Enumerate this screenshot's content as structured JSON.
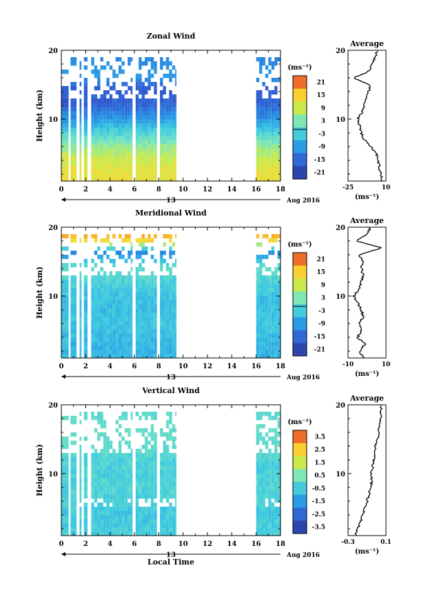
{
  "chart_data": [
    {
      "type": "heatmap",
      "title": "Zonal Wind",
      "ylabel": "Height (km)",
      "xlabel": "",
      "x_ticks": [
        "0",
        "2",
        "4",
        "6",
        "8",
        "10",
        "12",
        "14",
        "16",
        "18"
      ],
      "xlim": [
        0,
        18
      ],
      "y_ticks": [
        "20",
        "10"
      ],
      "ylim": [
        1,
        20
      ],
      "date_label": "13",
      "month_label": "Aug 2016",
      "colorbar_unit": "(ms⁻¹)",
      "colorbar_ticks": [
        "21",
        "15",
        "9",
        "3",
        "-3",
        "-9",
        "-15",
        "-21"
      ],
      "clim": [
        -24,
        24
      ],
      "data_blocks_hours": [
        [
          0,
          0.6
        ],
        [
          0.75,
          1.25
        ],
        [
          1.5,
          1.65
        ],
        [
          1.85,
          2.15
        ],
        [
          2.45,
          5.85
        ],
        [
          6.1,
          7.85
        ],
        [
          8.1,
          9.45
        ],
        [
          16,
          18
        ]
      ],
      "profile_rows": [
        {
          "h": 2,
          "v": 12
        },
        {
          "h": 4,
          "v": 9
        },
        {
          "h": 6,
          "v": 4
        },
        {
          "h": 8,
          "v": -3
        },
        {
          "h": 10,
          "v": -10
        },
        {
          "h": 12,
          "v": -16
        },
        {
          "h": 14,
          "v": -18
        },
        {
          "h": 16,
          "v": -10
        },
        {
          "h": 18,
          "v": -12
        }
      ],
      "average": {
        "title": "Average",
        "xlabel": "(ms⁻¹)",
        "x_ticks": [
          "-25",
          "10"
        ],
        "xlim": [
          -25,
          10
        ],
        "y_ticks": [
          "20",
          "10"
        ],
        "ylim": [
          1,
          20
        ],
        "profile": [
          {
            "h": 1,
            "v": 7
          },
          {
            "h": 2,
            "v": 5
          },
          {
            "h": 3,
            "v": 4
          },
          {
            "h": 4,
            "v": 3
          },
          {
            "h": 5,
            "v": 1
          },
          {
            "h": 6,
            "v": -4
          },
          {
            "h": 7,
            "v": -10
          },
          {
            "h": 8,
            "v": -13
          },
          {
            "h": 9,
            "v": -14
          },
          {
            "h": 10,
            "v": -16
          },
          {
            "h": 11,
            "v": -12
          },
          {
            "h": 12,
            "v": -10
          },
          {
            "h": 13,
            "v": -8
          },
          {
            "h": 14,
            "v": -6
          },
          {
            "h": 15,
            "v": -5
          },
          {
            "h": 16,
            "v": -20
          },
          {
            "h": 17,
            "v": -5
          },
          {
            "h": 18,
            "v": -3
          },
          {
            "h": 19,
            "v": 0
          },
          {
            "h": 20,
            "v": 2
          }
        ]
      }
    },
    {
      "type": "heatmap",
      "title": "Meridional Wind",
      "ylabel": "Height (km)",
      "xlabel": "",
      "x_ticks": [
        "0",
        "2",
        "4",
        "6",
        "8",
        "10",
        "12",
        "14",
        "16",
        "18"
      ],
      "xlim": [
        0,
        18
      ],
      "y_ticks": [
        "20",
        "10"
      ],
      "ylim": [
        1,
        20
      ],
      "date_label": "13",
      "month_label": "Aug 2016",
      "colorbar_unit": "(ms⁻¹)",
      "colorbar_ticks": [
        "21",
        "15",
        "9",
        "3",
        "-3",
        "-9",
        "-15",
        "-21"
      ],
      "clim": [
        -24,
        24
      ],
      "data_blocks_hours": [
        [
          0,
          0.6
        ],
        [
          0.75,
          1.25
        ],
        [
          1.5,
          1.65
        ],
        [
          1.85,
          2.15
        ],
        [
          2.45,
          5.85
        ],
        [
          6.1,
          7.85
        ],
        [
          8.1,
          9.45
        ],
        [
          16,
          18
        ]
      ],
      "profile_rows": [
        {
          "h": 2,
          "v": -6
        },
        {
          "h": 4,
          "v": -5
        },
        {
          "h": 6,
          "v": -4
        },
        {
          "h": 8,
          "v": -5
        },
        {
          "h": 10,
          "v": -4
        },
        {
          "h": 12,
          "v": -2
        },
        {
          "h": 14,
          "v": -1
        },
        {
          "h": 16,
          "v": -12
        },
        {
          "h": 18,
          "v": 16
        }
      ],
      "average": {
        "title": "Average",
        "xlabel": "(ms⁻¹)",
        "x_ticks": [
          "-10",
          "10"
        ],
        "xlim": [
          -10,
          10
        ],
        "y_ticks": [
          "20",
          "10"
        ],
        "ylim": [
          1,
          20
        ],
        "profile": [
          {
            "h": 1,
            "v": -2
          },
          {
            "h": 2,
            "v": -4
          },
          {
            "h": 3,
            "v": -1
          },
          {
            "h": 4,
            "v": -5
          },
          {
            "h": 5,
            "v": -3
          },
          {
            "h": 6,
            "v": -4
          },
          {
            "h": 7,
            "v": -2
          },
          {
            "h": 8,
            "v": -3
          },
          {
            "h": 9,
            "v": -5
          },
          {
            "h": 10,
            "v": -7
          },
          {
            "h": 11,
            "v": -4
          },
          {
            "h": 12,
            "v": -3
          },
          {
            "h": 13,
            "v": -2
          },
          {
            "h": 14,
            "v": -3
          },
          {
            "h": 15,
            "v": -2
          },
          {
            "h": 16,
            "v": -4
          },
          {
            "h": 17,
            "v": 8
          },
          {
            "h": 18,
            "v": -6
          },
          {
            "h": 19,
            "v": 0
          },
          {
            "h": 20,
            "v": 2
          }
        ]
      }
    },
    {
      "type": "heatmap",
      "title": "Vertical Wind",
      "ylabel": "Height (km)",
      "xlabel": "Local Time",
      "x_ticks": [
        "0",
        "2",
        "4",
        "6",
        "8",
        "10",
        "12",
        "14",
        "16",
        "18"
      ],
      "xlim": [
        0,
        18
      ],
      "y_ticks": [
        "20",
        "10"
      ],
      "ylim": [
        1,
        20
      ],
      "date_label": "13",
      "month_label": "Aug 2016",
      "colorbar_unit": "(ms⁻¹)",
      "colorbar_ticks": [
        "3.5",
        "2.5",
        "1.5",
        "0.5",
        "-0.5",
        "-1.5",
        "-2.5",
        "-3.5"
      ],
      "clim": [
        -4,
        4
      ],
      "data_blocks_hours": [
        [
          0,
          0.6
        ],
        [
          0.75,
          1.25
        ],
        [
          1.5,
          1.65
        ],
        [
          1.85,
          2.15
        ],
        [
          2.45,
          5.85
        ],
        [
          6.1,
          7.85
        ],
        [
          8.1,
          9.45
        ],
        [
          16,
          18
        ]
      ],
      "profile_rows": [
        {
          "h": 2,
          "v": -0.5
        },
        {
          "h": 4,
          "v": -0.6
        },
        {
          "h": 6,
          "v": -0.4
        },
        {
          "h": 8,
          "v": -0.3
        },
        {
          "h": 10,
          "v": -0.4
        },
        {
          "h": 12,
          "v": -0.3
        },
        {
          "h": 14,
          "v": -0.2
        },
        {
          "h": 16,
          "v": -0.1
        },
        {
          "h": 18,
          "v": -0.2
        }
      ],
      "average": {
        "title": "Average",
        "xlabel": "(ms⁻¹)",
        "x_ticks": [
          "-0.3",
          "0.1"
        ],
        "xlim": [
          -0.3,
          0.1
        ],
        "y_ticks": [
          "20",
          "10"
        ],
        "ylim": [
          1,
          20
        ],
        "profile": [
          {
            "h": 1,
            "v": -0.22
          },
          {
            "h": 2,
            "v": -0.2
          },
          {
            "h": 3,
            "v": -0.17
          },
          {
            "h": 4,
            "v": -0.15
          },
          {
            "h": 5,
            "v": -0.12
          },
          {
            "h": 6,
            "v": -0.1
          },
          {
            "h": 7,
            "v": -0.08
          },
          {
            "h": 8,
            "v": -0.06
          },
          {
            "h": 9,
            "v": -0.05
          },
          {
            "h": 10,
            "v": -0.06
          },
          {
            "h": 11,
            "v": -0.04
          },
          {
            "h": 12,
            "v": -0.03
          },
          {
            "h": 13,
            "v": -0.02
          },
          {
            "h": 14,
            "v": -0.01
          },
          {
            "h": 15,
            "v": 0.01
          },
          {
            "h": 16,
            "v": 0.02
          },
          {
            "h": 17,
            "v": 0.03
          },
          {
            "h": 18,
            "v": 0.05
          },
          {
            "h": 19,
            "v": 0.04
          },
          {
            "h": 20,
            "v": 0.06
          }
        ]
      }
    }
  ]
}
